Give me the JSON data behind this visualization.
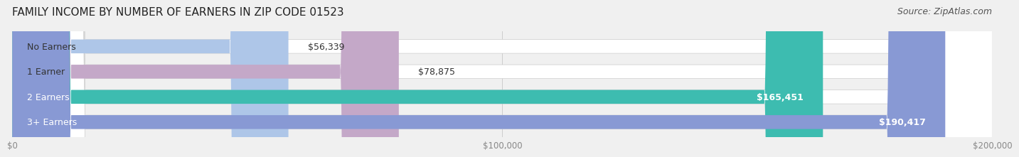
{
  "title": "FAMILY INCOME BY NUMBER OF EARNERS IN ZIP CODE 01523",
  "source": "Source: ZipAtlas.com",
  "categories": [
    "No Earners",
    "1 Earner",
    "2 Earners",
    "3+ Earners"
  ],
  "values": [
    56339,
    78875,
    165451,
    190417
  ],
  "value_labels": [
    "$56,339",
    "$78,875",
    "$165,451",
    "$190,417"
  ],
  "bar_colors": [
    "#aec6e8",
    "#c4a8c8",
    "#3dbcb0",
    "#8899d4"
  ],
  "bar_edge_colors": [
    "#aec6e8",
    "#c4a8c8",
    "#3dbcb0",
    "#8899d4"
  ],
  "label_bg_colors": [
    "#dce8f5",
    "#ddd0e8",
    "#3dbcb0",
    "#aab8e0"
  ],
  "x_max": 200000,
  "x_ticks": [
    0,
    100000,
    200000
  ],
  "x_tick_labels": [
    "$0",
    "$100,000",
    "$200,000"
  ],
  "background_color": "#f0f0f0",
  "bar_bg_color": "#ffffff",
  "title_fontsize": 11,
  "source_fontsize": 9,
  "label_fontsize": 9,
  "value_fontsize": 9
}
